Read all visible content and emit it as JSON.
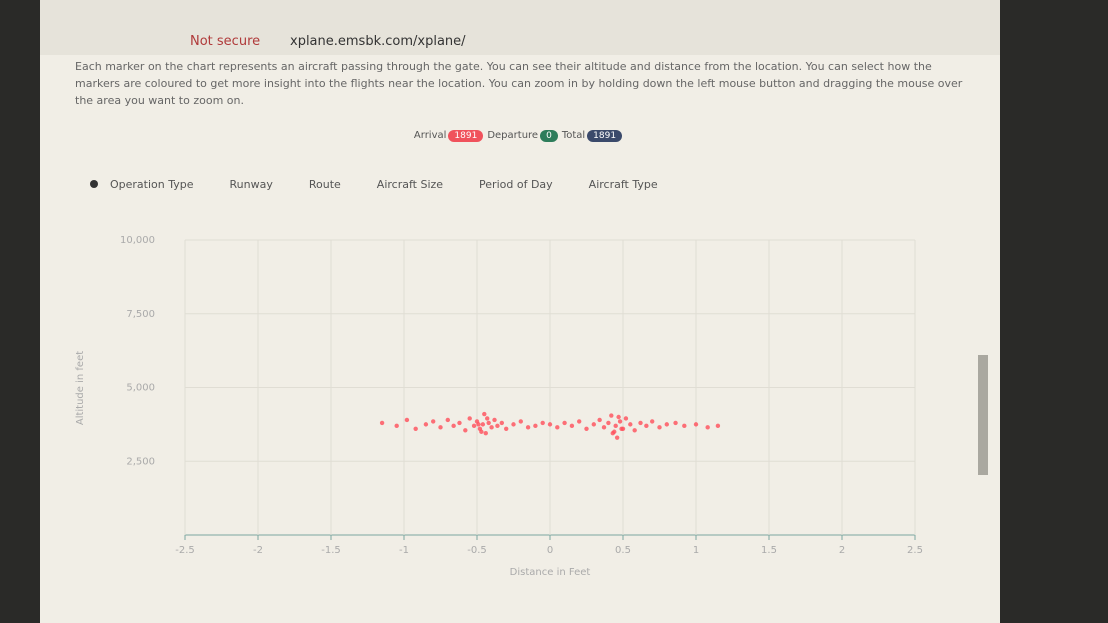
{
  "browser": {
    "security": "Not secure",
    "url": "xplane.emsbk.com/xplane/"
  },
  "description": "Each marker on the chart represents an aircraft passing through the gate. You can see their altitude and distance from the location. You can select how the markers are coloured to get more insight into the flights near the location. You can zoom in by holding down the left mouse button and dragging the mouse over the area you want to zoom on.",
  "counts": [
    {
      "label": "Arrival",
      "value": 1891,
      "color": "#f0525c"
    },
    {
      "label": "Departure",
      "value": 0,
      "color": "#2e7d5b"
    },
    {
      "label": "Total",
      "value": 1891,
      "color": "#3b4a6b"
    }
  ],
  "tabs": [
    "Operation Type",
    "Runway",
    "Route",
    "Aircraft Size",
    "Period of Day",
    "Aircraft Type"
  ],
  "chart_data": {
    "type": "scatter",
    "xlabel": "Distance in Feet",
    "ylabel": "Altitude in feet",
    "color": "#ff4d5a",
    "grid": true,
    "x": [
      -1.15,
      -1.05,
      -0.98,
      -0.92,
      -0.85,
      -0.8,
      -0.75,
      -0.7,
      -0.66,
      -0.62,
      -0.58,
      -0.55,
      -0.52,
      -0.5,
      -0.48,
      -0.46,
      -0.45,
      -0.44,
      -0.42,
      -0.4,
      -0.38,
      -0.36,
      -0.33,
      -0.3,
      -0.25,
      -0.2,
      -0.15,
      -0.1,
      -0.05,
      0,
      0.05,
      0.1,
      0.15,
      0.2,
      0.25,
      0.3,
      0.34,
      0.37,
      0.4,
      0.42,
      0.44,
      0.45,
      0.46,
      0.48,
      0.5,
      0.52,
      0.55,
      0.58,
      0.62,
      0.66,
      0.7,
      0.75,
      0.8,
      0.86,
      0.92,
      1.0,
      1.08,
      1.15,
      -0.47,
      -0.43,
      0.43,
      0.47,
      -0.49,
      0.49
    ],
    "values": [
      3800,
      3700,
      3900,
      3600,
      3750,
      3850,
      3650,
      3900,
      3700,
      3800,
      3550,
      3950,
      3700,
      3850,
      3600,
      3750,
      4100,
      3450,
      3800,
      3650,
      3900,
      3700,
      3800,
      3600,
      3750,
      3850,
      3650,
      3700,
      3800,
      3750,
      3650,
      3800,
      3700,
      3850,
      3600,
      3750,
      3900,
      3650,
      3800,
      4050,
      3500,
      3700,
      3300,
      3850,
      3600,
      3950,
      3750,
      3550,
      3800,
      3700,
      3850,
      3650,
      3750,
      3800,
      3700,
      3750,
      3650,
      3700,
      3500,
      3950,
      3450,
      4000,
      3750,
      3600
    ],
    "xlim": [
      -2.5,
      2.5
    ],
    "xticks": [
      -2.5,
      -2,
      -1.5,
      -1,
      -0.5,
      0,
      0.5,
      1,
      1.5,
      2,
      2.5
    ],
    "ylim": [
      0,
      10000
    ],
    "yticks": [
      {
        "value": 2500,
        "label": "2,500"
      },
      {
        "value": 5000,
        "label": "5,000"
      },
      {
        "value": 7500,
        "label": "7,500"
      },
      {
        "value": 10000,
        "label": "10,000"
      }
    ]
  }
}
